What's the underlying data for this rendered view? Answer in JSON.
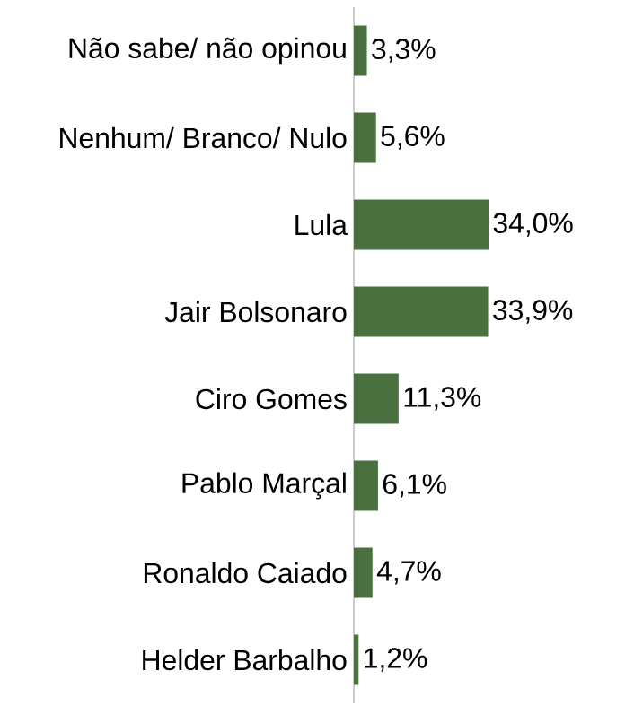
{
  "chart_data": {
    "type": "bar",
    "orientation": "horizontal",
    "categories": [
      "Não sabe/ não opinou",
      "Nenhum/ Branco/ Nulo",
      "Lula",
      "Jair Bolsonaro",
      "Ciro Gomes",
      "Pablo Marçal",
      "Ronaldo Caiado",
      "Helder Barbalho"
    ],
    "values": [
      3.3,
      5.6,
      34.0,
      33.9,
      11.3,
      6.1,
      4.7,
      1.2
    ],
    "value_labels": [
      "3,3%",
      "5,6%",
      "34,0%",
      "33,9%",
      "11,3%",
      "6,1%",
      "4,7%",
      "1,2%"
    ],
    "color": "#4a7040"
  }
}
